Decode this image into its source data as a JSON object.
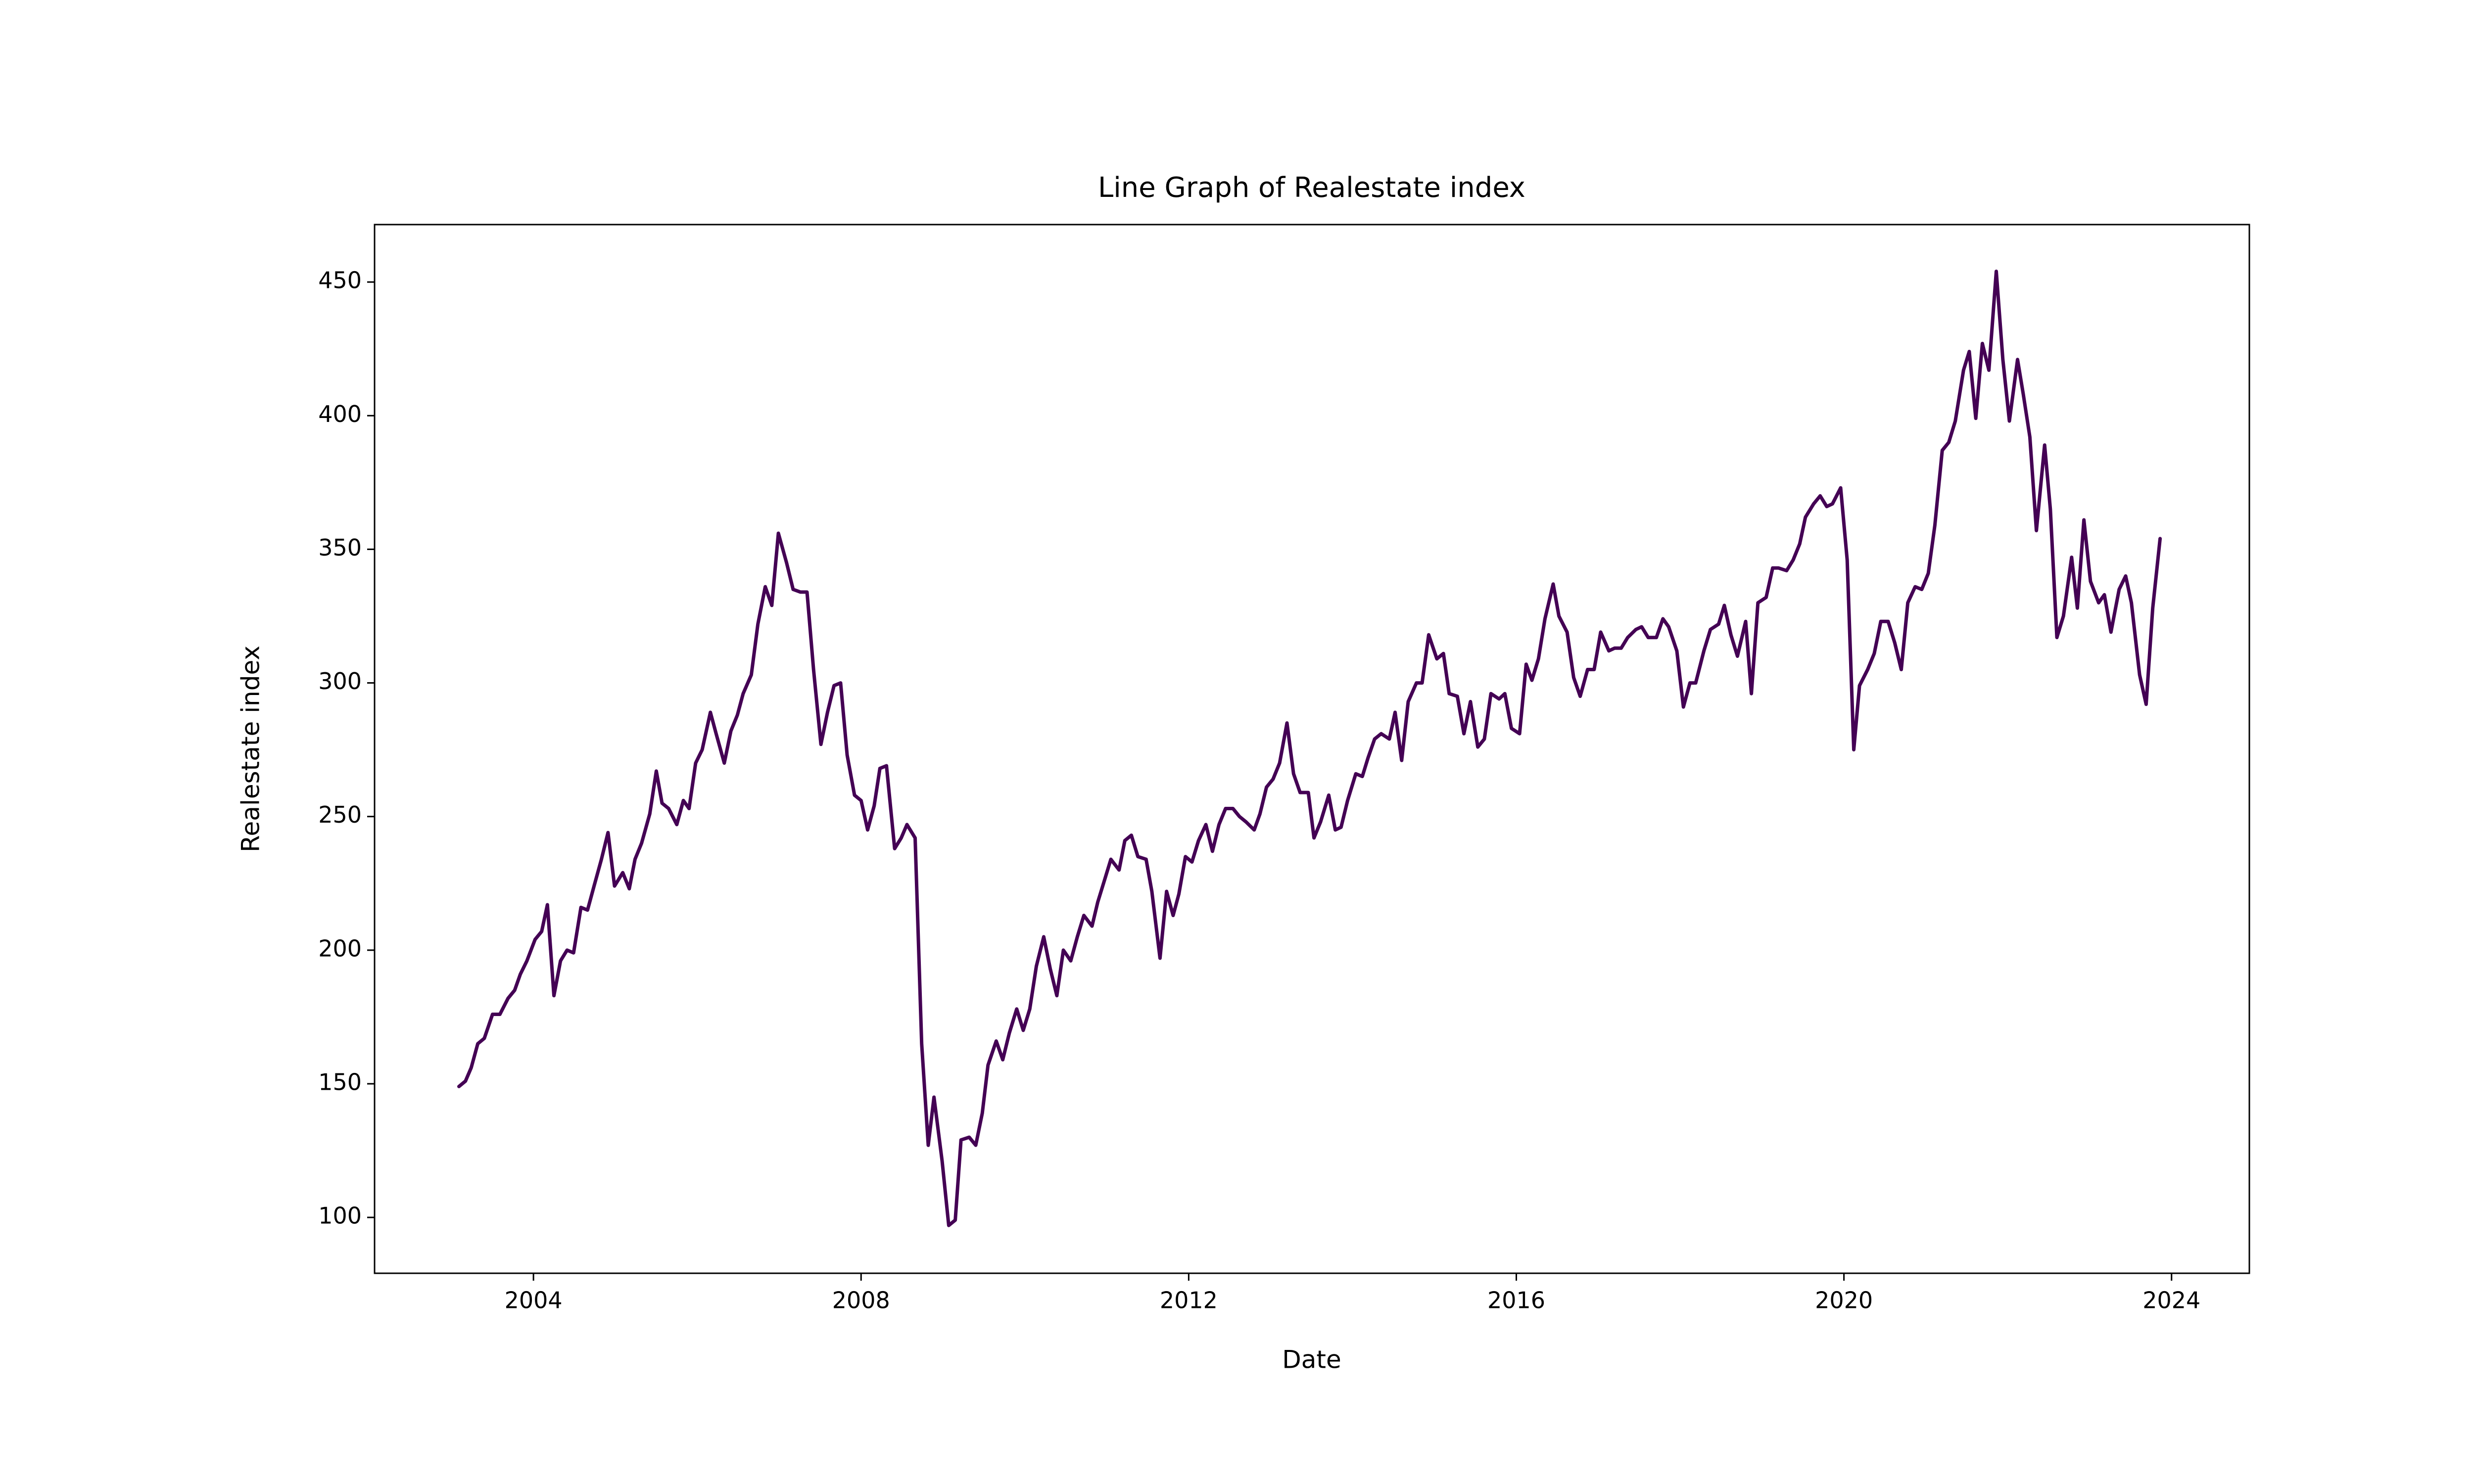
{
  "chart_data": {
    "type": "line",
    "title": "Line Graph of Realestate index",
    "x_label": "Date",
    "y_label": "Realestate index",
    "color": "#440154",
    "xlim": [
      2002.06,
      2024.95
    ],
    "ylim": [
      79.1,
      471.5
    ],
    "xticks": [
      2004,
      2008,
      2012,
      2016,
      2020,
      2024
    ],
    "yticks": [
      100,
      150,
      200,
      250,
      300,
      350,
      400,
      450
    ],
    "grid": false,
    "x": [
      2003.09,
      2003.17,
      2003.24,
      2003.32,
      2003.4,
      2003.5,
      2003.59,
      2003.69,
      2003.77,
      2003.84,
      2003.92,
      2004.02,
      2004.1,
      2004.17,
      2004.25,
      2004.33,
      2004.41,
      2004.49,
      2004.58,
      2004.66,
      2004.74,
      2004.83,
      2004.91,
      2004.99,
      2005.09,
      2005.17,
      2005.24,
      2005.32,
      2005.42,
      2005.5,
      2005.57,
      2005.65,
      2005.75,
      2005.83,
      2005.9,
      2005.98,
      2006.06,
      2006.16,
      2006.23,
      2006.33,
      2006.41,
      2006.49,
      2006.56,
      2006.66,
      2006.74,
      2006.83,
      2006.91,
      2006.99,
      2007.09,
      2007.17,
      2007.26,
      2007.34,
      2007.42,
      2007.51,
      2007.59,
      2007.67,
      2007.75,
      2007.83,
      2007.92,
      2008.0,
      2008.08,
      2008.16,
      2008.23,
      2008.31,
      2008.41,
      2008.49,
      2008.56,
      2008.66,
      2008.74,
      2008.82,
      2008.89,
      2008.99,
      2009.07,
      2009.15,
      2009.22,
      2009.32,
      2009.4,
      2009.48,
      2009.55,
      2009.65,
      2009.73,
      2009.81,
      2009.9,
      2009.98,
      2010.06,
      2010.14,
      2010.23,
      2010.31,
      2010.39,
      2010.47,
      2010.56,
      2010.64,
      2010.72,
      2010.82,
      2010.89,
      2010.97,
      2011.05,
      2011.15,
      2011.22,
      2011.3,
      2011.38,
      2011.48,
      2011.55,
      2011.65,
      2011.73,
      2011.81,
      2011.88,
      2011.96,
      2012.04,
      2012.12,
      2012.21,
      2012.29,
      2012.37,
      2012.45,
      2012.54,
      2012.62,
      2012.7,
      2012.8,
      2012.87,
      2012.95,
      2013.03,
      2013.11,
      2013.2,
      2013.28,
      2013.36,
      2013.46,
      2013.53,
      2013.61,
      2013.71,
      2013.79,
      2013.86,
      2013.94,
      2014.04,
      2014.12,
      2014.19,
      2014.27,
      2014.35,
      2014.45,
      2014.52,
      2014.6,
      2014.68,
      2014.78,
      2014.85,
      2014.93,
      2015.03,
      2015.11,
      2015.18,
      2015.28,
      2015.36,
      2015.44,
      2015.53,
      2015.61,
      2015.69,
      2015.79,
      2015.86,
      2015.94,
      2016.04,
      2016.12,
      2016.19,
      2016.27,
      2016.35,
      2016.45,
      2016.52,
      2016.62,
      2016.7,
      2016.78,
      2016.87,
      2016.95,
      2017.03,
      2017.13,
      2017.2,
      2017.28,
      2017.36,
      2017.46,
      2017.53,
      2017.61,
      2017.71,
      2017.79,
      2017.86,
      2017.96,
      2018.04,
      2018.12,
      2018.19,
      2018.29,
      2018.37,
      2018.47,
      2018.54,
      2018.62,
      2018.7,
      2018.8,
      2018.87,
      2018.95,
      2019.05,
      2019.13,
      2019.2,
      2019.3,
      2019.38,
      2019.46,
      2019.53,
      2019.63,
      2019.71,
      2019.79,
      2019.86,
      2019.96,
      2020.04,
      2020.12,
      2020.19,
      2020.29,
      2020.37,
      2020.45,
      2020.54,
      2020.62,
      2020.7,
      2020.78,
      2020.87,
      2020.95,
      2021.03,
      2021.11,
      2021.2,
      2021.28,
      2021.36,
      2021.46,
      2021.53,
      2021.61,
      2021.69,
      2021.77,
      2021.86,
      2021.94,
      2022.02,
      2022.12,
      2022.19,
      2022.27,
      2022.35,
      2022.45,
      2022.52,
      2022.6,
      2022.68,
      2022.78,
      2022.85,
      2022.93,
      2023.01,
      2023.11,
      2023.18,
      2023.26,
      2023.36,
      2023.44,
      2023.51,
      2023.61,
      2023.69,
      2023.77,
      2023.86
    ],
    "values": [
      149,
      151,
      156,
      165,
      167,
      176,
      176,
      182,
      185,
      191,
      196,
      204,
      207,
      217,
      183,
      196,
      200,
      199,
      216,
      215,
      224,
      234,
      244,
      224,
      229,
      223,
      234,
      240,
      251,
      267,
      255,
      253,
      247,
      256,
      253,
      270,
      275,
      289,
      281,
      270,
      282,
      288,
      296,
      303,
      322,
      336,
      329,
      356,
      345,
      335,
      334,
      334,
      305,
      277,
      289,
      299,
      300,
      273,
      258,
      256,
      245,
      254,
      268,
      269,
      238,
      242,
      247,
      242,
      165,
      127,
      145,
      121,
      97,
      99,
      129,
      130,
      127,
      139,
      157,
      166,
      159,
      169,
      178,
      170,
      178,
      194,
      205,
      193,
      183,
      200,
      196,
      205,
      213,
      209,
      218,
      226,
      234,
      230,
      241,
      243,
      235,
      234,
      222,
      197,
      222,
      213,
      221,
      235,
      233,
      241,
      247,
      237,
      247,
      253,
      253,
      250,
      248,
      245,
      251,
      261,
      264,
      270,
      285,
      266,
      259,
      259,
      242,
      248,
      258,
      245,
      246,
      256,
      266,
      265,
      272,
      279,
      281,
      279,
      289,
      271,
      293,
      300,
      300,
      318,
      309,
      311,
      296,
      295,
      281,
      293,
      276,
      279,
      296,
      294,
      296,
      283,
      281,
      307,
      301,
      309,
      324,
      337,
      325,
      319,
      302,
      295,
      305,
      305,
      319,
      312,
      313,
      313,
      317,
      320,
      321,
      317,
      317,
      324,
      321,
      312,
      291,
      300,
      300,
      312,
      320,
      322,
      329,
      318,
      310,
      323,
      296,
      330,
      332,
      343,
      343,
      342,
      346,
      352,
      362,
      367,
      370,
      366,
      367,
      373,
      346,
      275,
      299,
      305,
      311,
      323,
      323,
      315,
      305,
      330,
      336,
      335,
      341,
      359,
      387,
      390,
      398,
      417,
      424,
      399,
      427,
      417,
      454,
      421,
      398,
      421,
      408,
      392,
      357,
      389,
      365,
      317,
      325,
      347,
      328,
      361,
      338,
      330,
      333,
      319,
      335,
      340,
      330,
      303,
      292,
      328,
      354
    ]
  }
}
